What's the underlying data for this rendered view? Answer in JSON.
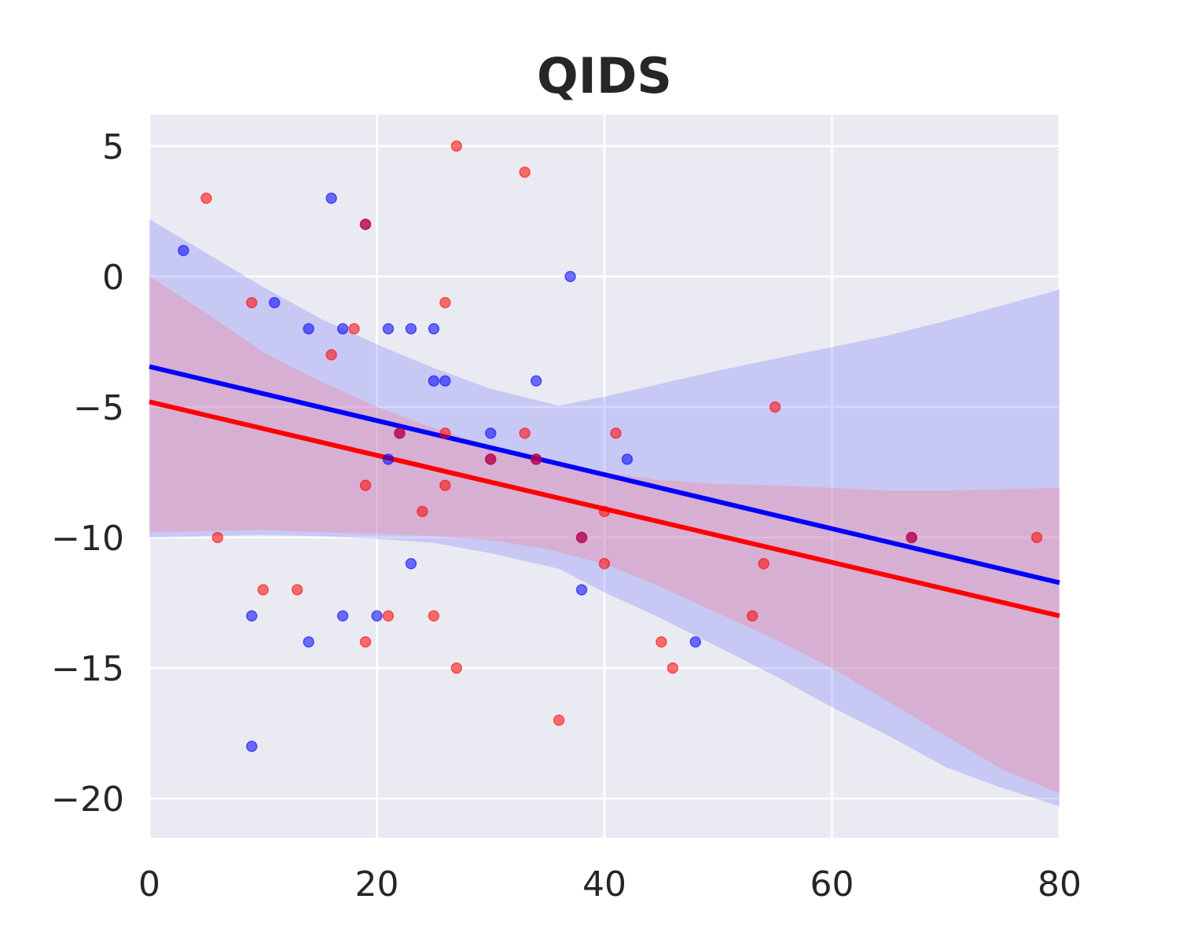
{
  "chart_data": {
    "type": "scatter",
    "title": "QIDS",
    "xlabel": "",
    "ylabel": "",
    "xlim": [
      0,
      80
    ],
    "ylim": [
      -21.5,
      6.2
    ],
    "x_ticks": [
      0,
      20,
      40,
      60,
      80
    ],
    "y_ticks": [
      5,
      0,
      -5,
      -10,
      -15,
      -20
    ],
    "x_tick_labels": [
      "0",
      "20",
      "40",
      "60",
      "80"
    ],
    "y_tick_labels": [
      "5",
      "0",
      "−5",
      "−10",
      "−15",
      "−20"
    ],
    "grid": true,
    "background": "#eaeaf2",
    "series": [
      {
        "color": "#0000ff",
        "points": [
          [
            3,
            1
          ],
          [
            9,
            -13
          ],
          [
            9,
            -18
          ],
          [
            11,
            -1
          ],
          [
            14,
            -2
          ],
          [
            14,
            -14
          ],
          [
            16,
            3
          ],
          [
            17,
            -2
          ],
          [
            17,
            -13
          ],
          [
            19,
            2
          ],
          [
            20,
            -13
          ],
          [
            21,
            -2
          ],
          [
            21,
            -7
          ],
          [
            22,
            -6
          ],
          [
            23,
            -2
          ],
          [
            23,
            -11
          ],
          [
            25,
            -2
          ],
          [
            25,
            -4
          ],
          [
            26,
            -4
          ],
          [
            30,
            -6
          ],
          [
            30,
            -7
          ],
          [
            34,
            -4
          ],
          [
            34,
            -7
          ],
          [
            37,
            0
          ],
          [
            38,
            -10
          ],
          [
            38,
            -12
          ],
          [
            42,
            -7
          ],
          [
            48,
            -14
          ],
          [
            67,
            -10
          ]
        ],
        "fit": {
          "intercept": -3.45,
          "slope": -0.1035
        },
        "band": {
          "x": [
            0,
            5,
            10,
            15,
            20,
            25,
            30,
            36,
            40,
            45,
            50,
            55,
            60,
            65,
            70,
            75,
            80
          ],
          "upper": [
            2.2,
            0.9,
            -0.4,
            -1.6,
            -2.6,
            -3.5,
            -4.3,
            -4.95,
            -4.6,
            -4.1,
            -3.6,
            -3.15,
            -2.7,
            -2.25,
            -1.7,
            -1.1,
            -0.5
          ],
          "lower": [
            -10.0,
            -9.95,
            -9.9,
            -9.95,
            -10.05,
            -10.2,
            -10.6,
            -11.2,
            -12.1,
            -13.1,
            -14.2,
            -15.3,
            -16.5,
            -17.6,
            -18.8,
            -19.6,
            -20.3
          ]
        }
      },
      {
        "color": "#ff0000",
        "points": [
          [
            5,
            3
          ],
          [
            6,
            -10
          ],
          [
            9,
            -1
          ],
          [
            10,
            -12
          ],
          [
            13,
            -12
          ],
          [
            16,
            -3
          ],
          [
            18,
            -2
          ],
          [
            19,
            -8
          ],
          [
            19,
            -14
          ],
          [
            19,
            2
          ],
          [
            21,
            -13
          ],
          [
            22,
            -6
          ],
          [
            24,
            -9
          ],
          [
            25,
            -13
          ],
          [
            26,
            -1
          ],
          [
            26,
            -6
          ],
          [
            26,
            -8
          ],
          [
            27,
            5
          ],
          [
            27,
            -15
          ],
          [
            30,
            -7
          ],
          [
            33,
            -6
          ],
          [
            33,
            4
          ],
          [
            34,
            -7
          ],
          [
            36,
            -17
          ],
          [
            38,
            -10
          ],
          [
            40,
            -9
          ],
          [
            40,
            -11
          ],
          [
            41,
            -6
          ],
          [
            45,
            -14
          ],
          [
            46,
            -15
          ],
          [
            53,
            -13
          ],
          [
            54,
            -11
          ],
          [
            55,
            -5
          ],
          [
            67,
            -10
          ],
          [
            78,
            -10
          ]
        ],
        "fit": {
          "intercept": -4.8,
          "slope": -0.1025
        },
        "band": {
          "x": [
            0,
            5,
            10,
            15,
            20,
            25,
            30,
            35,
            40,
            45,
            50,
            55,
            60,
            65,
            70,
            75,
            80
          ],
          "upper": [
            0.0,
            -1.4,
            -2.9,
            -4.0,
            -5.0,
            -5.8,
            -6.5,
            -7.1,
            -7.5,
            -7.8,
            -7.95,
            -8.0,
            -8.1,
            -8.2,
            -8.2,
            -8.15,
            -8.1
          ],
          "lower": [
            -9.8,
            -9.75,
            -9.7,
            -9.8,
            -9.85,
            -9.95,
            -10.1,
            -10.45,
            -11.0,
            -11.9,
            -12.9,
            -13.9,
            -15.0,
            -16.3,
            -17.6,
            -18.9,
            -19.8
          ]
        }
      }
    ]
  }
}
